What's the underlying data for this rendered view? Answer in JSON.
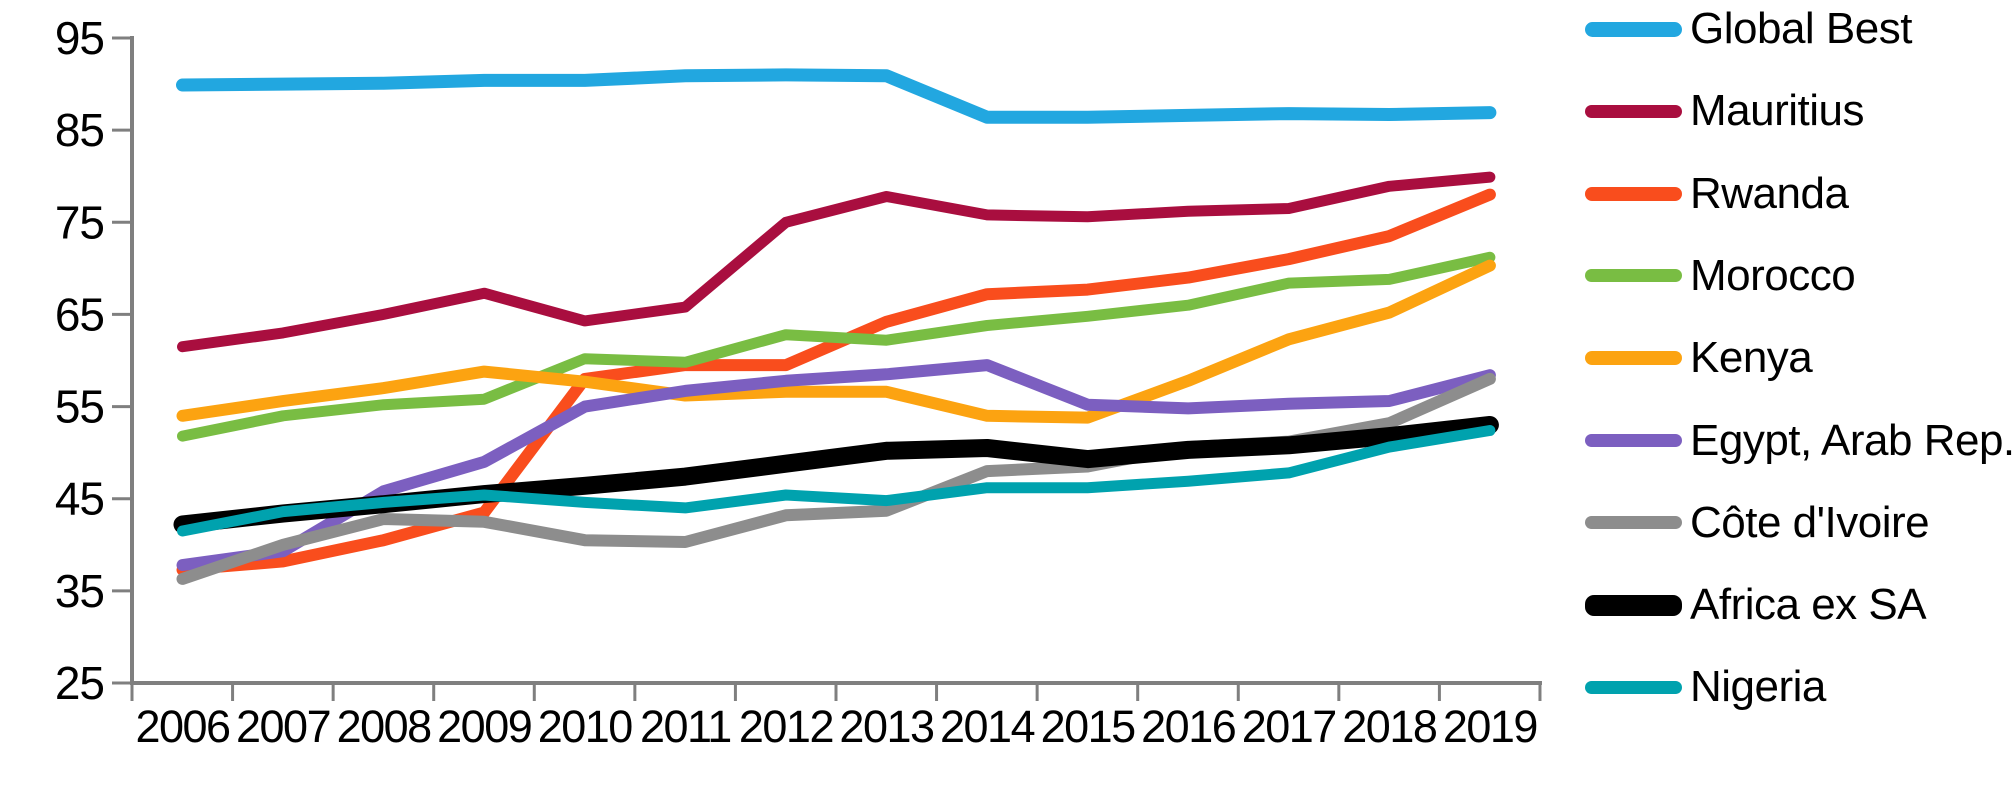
{
  "chart_data": {
    "type": "line",
    "title": "",
    "xlabel": "",
    "ylabel": "",
    "background": "#ffffff",
    "grid": false,
    "legend_position": "right",
    "axis_color": "#7F7F7F",
    "text_color": "#000000",
    "ylim": [
      25,
      95
    ],
    "y_ticks": [
      "25",
      "35",
      "45",
      "55",
      "65",
      "75",
      "85",
      "95"
    ],
    "y_tick_values": [
      25,
      35,
      45,
      55,
      65,
      75,
      85,
      95
    ],
    "categories": [
      "2006",
      "2007",
      "2008",
      "2009",
      "2010",
      "2011",
      "2012",
      "2013",
      "2014",
      "2015",
      "2016",
      "2017",
      "2018",
      "2019"
    ],
    "series": [
      {
        "name": "Global Best",
        "color": "#22A7E0",
        "line_width": 13,
        "key_height": 15,
        "values": [
          89.9,
          90.0,
          90.1,
          90.4,
          90.4,
          90.9,
          91.0,
          90.9,
          86.4,
          86.4,
          86.6,
          86.8,
          86.7,
          86.9
        ]
      },
      {
        "name": "Mauritius",
        "color": "#A90E3F",
        "line_width": 11,
        "key_height": 13,
        "values": [
          61.5,
          63.0,
          65.0,
          67.3,
          64.3,
          65.8,
          75.0,
          77.8,
          75.8,
          75.6,
          76.2,
          76.5,
          78.9,
          79.9
        ]
      },
      {
        "name": "Rwanda",
        "color": "#F94D1D",
        "line_width": 12,
        "key_height": 14,
        "values": [
          37.3,
          38.2,
          40.5,
          43.5,
          58.0,
          59.5,
          59.5,
          64.2,
          67.2,
          67.7,
          69.0,
          71.0,
          73.5,
          78.0
        ]
      },
      {
        "name": "Morocco",
        "color": "#79BD43",
        "line_width": 11,
        "key_height": 13,
        "values": [
          51.8,
          54.0,
          55.2,
          55.8,
          60.2,
          59.8,
          62.8,
          62.2,
          63.8,
          64.8,
          66.0,
          68.4,
          68.8,
          71.2
        ]
      },
      {
        "name": "Kenya",
        "color": "#FCA311",
        "line_width": 12,
        "key_height": 14,
        "values": [
          54.0,
          55.6,
          57.0,
          58.8,
          57.7,
          56.2,
          56.6,
          56.6,
          54.0,
          53.8,
          57.8,
          62.3,
          65.2,
          70.3
        ]
      },
      {
        "name": "Egypt, Arab Rep.",
        "color": "#7C5FC0",
        "line_width": 12,
        "key_height": 13,
        "values": [
          37.8,
          39.3,
          45.8,
          49.0,
          55.0,
          56.7,
          57.8,
          58.5,
          59.5,
          55.2,
          54.8,
          55.3,
          55.6,
          58.4
        ]
      },
      {
        "name": "Côte d'Ivoire",
        "color": "#8D8D8D",
        "line_width": 12,
        "key_height": 13,
        "values": [
          36.3,
          40.0,
          42.8,
          42.5,
          40.5,
          40.3,
          43.2,
          43.7,
          48.0,
          48.5,
          50.6,
          51.2,
          53.2,
          58.0
        ]
      },
      {
        "name": "Africa ex SA",
        "color": "#000000",
        "line_width": 18,
        "key_height": 21,
        "values": [
          42.2,
          43.4,
          44.4,
          45.5,
          46.4,
          47.4,
          48.8,
          50.2,
          50.5,
          49.3,
          50.3,
          50.8,
          51.8,
          53.0
        ]
      },
      {
        "name": "Nigeria",
        "color": "#00A2AE",
        "line_width": 11,
        "key_height": 13,
        "values": [
          41.5,
          43.6,
          44.6,
          45.4,
          44.6,
          44.0,
          45.4,
          44.8,
          46.2,
          46.2,
          46.9,
          47.8,
          50.6,
          52.4
        ]
      }
    ]
  }
}
